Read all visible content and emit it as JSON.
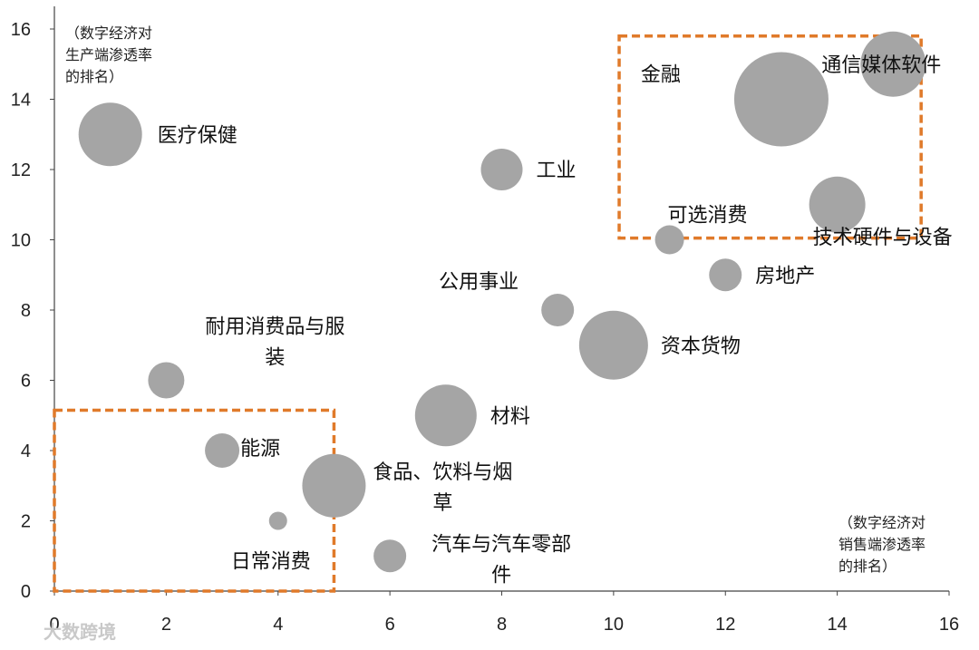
{
  "chart_data": {
    "type": "scatter",
    "bubble": true,
    "xlim": [
      0,
      16
    ],
    "ylim": [
      0,
      16
    ],
    "xticks": [
      "0",
      "2",
      "4",
      "6",
      "8",
      "10",
      "12",
      "14",
      "16"
    ],
    "yticks": [
      "0",
      "2",
      "4",
      "6",
      "8",
      "10",
      "12",
      "14",
      "16"
    ],
    "ylabel_lines": [
      "（数字经济对",
      "生产端渗透率",
      "的排名）"
    ],
    "xlabel_lines": [
      "（数字经济对",
      "销售端渗透率",
      "的排名）"
    ],
    "bubble_color": "#a5a5a5",
    "highlight_color": "#e07a2a",
    "points": [
      {
        "label": [
          "医疗保健"
        ],
        "x": 1,
        "y": 13,
        "size": 35
      },
      {
        "label": [
          "耐用消费品与服",
          "装"
        ],
        "x": 2,
        "y": 6,
        "size": 20
      },
      {
        "label": [
          "能源"
        ],
        "x": 3,
        "y": 4,
        "size": 19
      },
      {
        "label": [
          "日常消费"
        ],
        "x": 4,
        "y": 2,
        "size": 10
      },
      {
        "label": [
          "食品、饮料与烟",
          "草"
        ],
        "x": 5,
        "y": 3,
        "size": 35
      },
      {
        "label": [
          "汽车与汽车零部",
          "件"
        ],
        "x": 6,
        "y": 1,
        "size": 18
      },
      {
        "label": [
          "材料"
        ],
        "x": 7,
        "y": 5,
        "size": 34
      },
      {
        "label": [
          "工业"
        ],
        "x": 8,
        "y": 12,
        "size": 23
      },
      {
        "label": [
          "公用事业"
        ],
        "x": 9,
        "y": 8,
        "size": 18
      },
      {
        "label": [
          "资本货物"
        ],
        "x": 10,
        "y": 7,
        "size": 38
      },
      {
        "label": [
          "可选消费"
        ],
        "x": 11,
        "y": 10,
        "size": 16
      },
      {
        "label": [
          "房地产"
        ],
        "x": 12,
        "y": 9,
        "size": 18
      },
      {
        "label": [
          "金融"
        ],
        "x": 13,
        "y": 14,
        "size": 52
      },
      {
        "label": [
          "技术硬件与设备"
        ],
        "x": 14,
        "y": 11,
        "size": 31
      },
      {
        "label": [
          "通信媒体软件"
        ],
        "x": 15,
        "y": 15,
        "size": 36
      }
    ],
    "highlight_boxes": [
      {
        "x0": 0,
        "y0": 0,
        "x1": 5,
        "y1": 5.15
      },
      {
        "x0": 10.1,
        "y0": 10.05,
        "x1": 15.5,
        "y1": 15.8
      }
    ]
  },
  "watermark": "大数跨境"
}
